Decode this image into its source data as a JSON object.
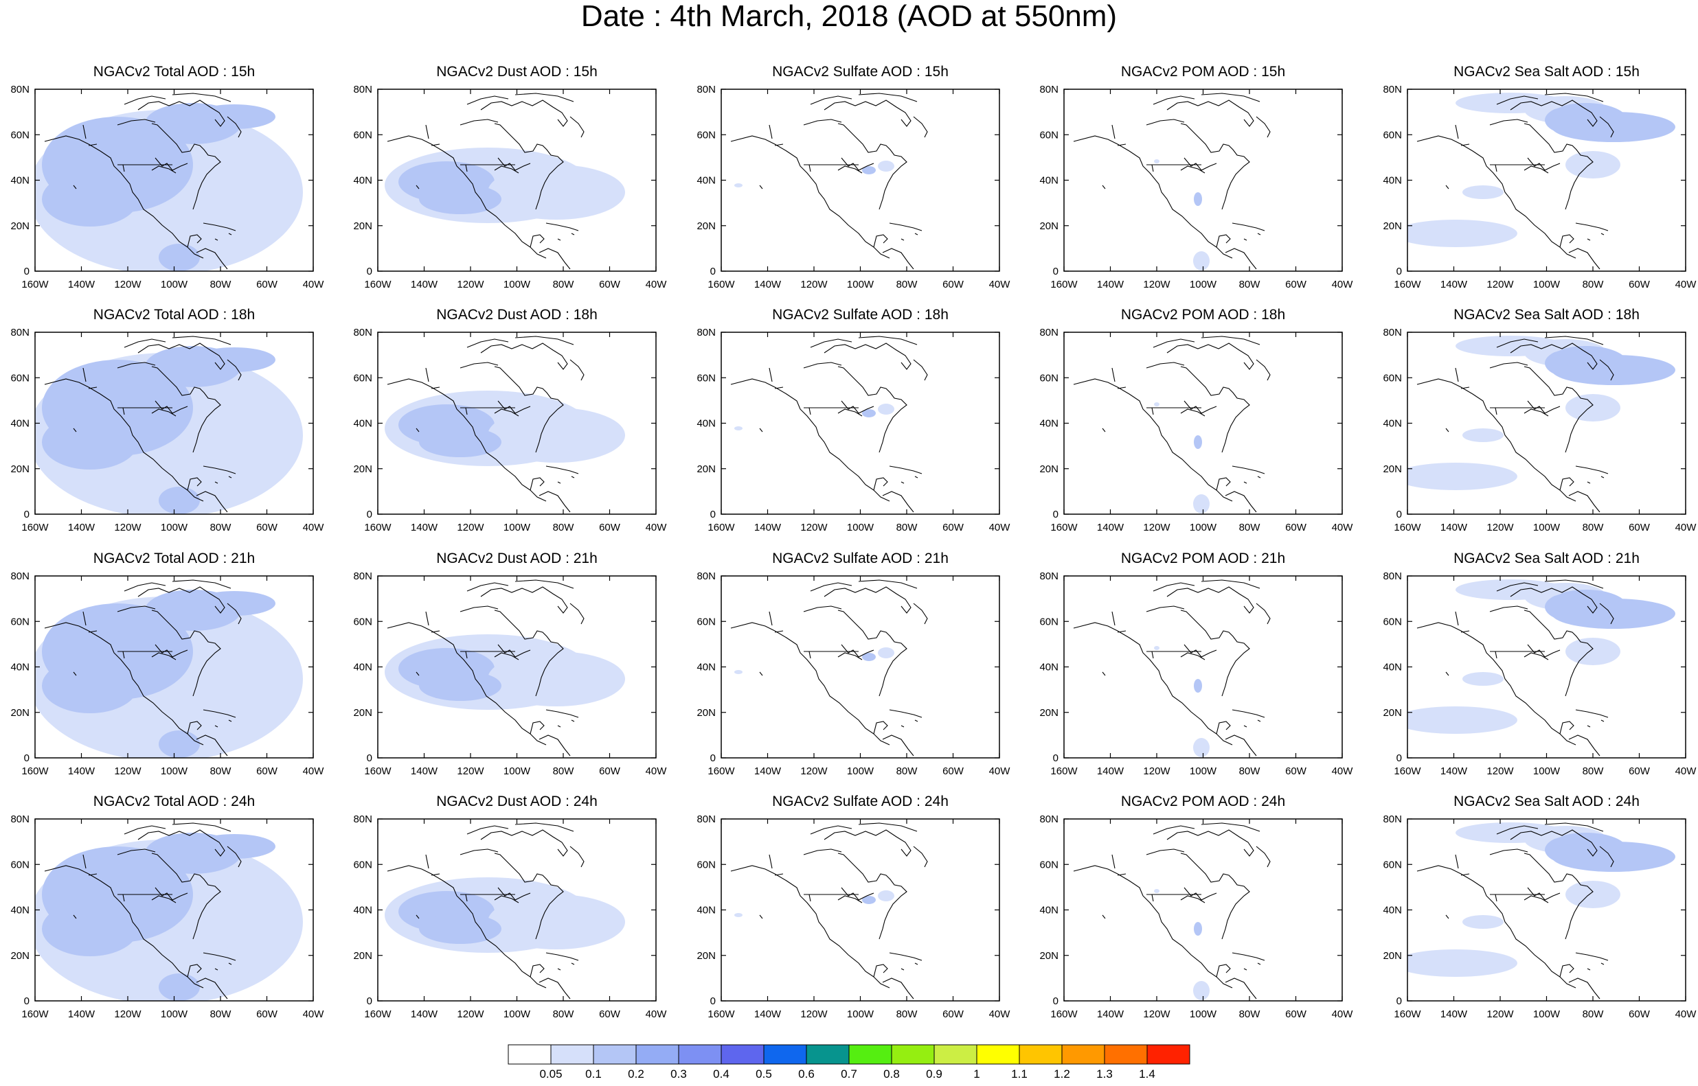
{
  "title": "Date : 4th March, 2018 (AOD at 550nm)",
  "columns": [
    {
      "key": "total",
      "titles": [
        "NGACv2 Total AOD : 15h",
        "NGACv2 Total AOD : 18h",
        "NGACv2 Total AOD : 21h",
        "NGACv2 Total AOD : 24h"
      ]
    },
    {
      "key": "dust",
      "titles": [
        "NGACv2 Dust AOD : 15h",
        "NGACv2 Dust AOD : 18h",
        "NGACv2 Dust AOD : 21h",
        "NGACv2 Dust AOD : 24h"
      ]
    },
    {
      "key": "sulfate",
      "titles": [
        "NGACv2 Sulfate AOD : 15h",
        "NGACv2 Sulfate AOD : 18h",
        "NGACv2 Sulfate AOD : 21h",
        "NGACv2 Sulfate AOD : 24h"
      ]
    },
    {
      "key": "pom",
      "titles": [
        "NGACv2 POM AOD : 15h",
        "NGACv2 POM AOD : 18h",
        "NGACv2 POM AOD : 21h",
        "NGACv2 POM AOD : 24h"
      ]
    },
    {
      "key": "seasalt",
      "titles": [
        "NGACv2 Sea Salt AOD : 15h",
        "NGACv2 Sea Salt AOD : 18h",
        "NGACv2 Sea Salt AOD : 21h",
        "NGACv2 Sea Salt  AOD : 24h"
      ]
    }
  ],
  "lon_ticks": [
    "160W",
    "140W",
    "120W",
    "100W",
    "80W",
    "60W",
    "40W"
  ],
  "lat_ticks": [
    "0",
    "20N",
    "40N",
    "60N",
    "80N"
  ],
  "lon_range": [
    -160,
    -40
  ],
  "lat_range": [
    0,
    80
  ],
  "colorbar": {
    "labels": [
      "0.05",
      "0.1",
      "0.2",
      "0.3",
      "0.4",
      "0.5",
      "0.6",
      "0.7",
      "0.8",
      "0.9",
      "1",
      "1.1",
      "1.2",
      "1.3",
      "1.4"
    ],
    "colors": [
      "#ffffff",
      "#d6e0fa",
      "#b4c6f6",
      "#94acf5",
      "#7d90f3",
      "#5e66ee",
      "#0f67ee",
      "#07948e",
      "#55ee11",
      "#95ee11",
      "#ccee44",
      "#ffff00",
      "#ffc500",
      "#ff9900",
      "#ff7000",
      "#ff2200"
    ]
  }
}
